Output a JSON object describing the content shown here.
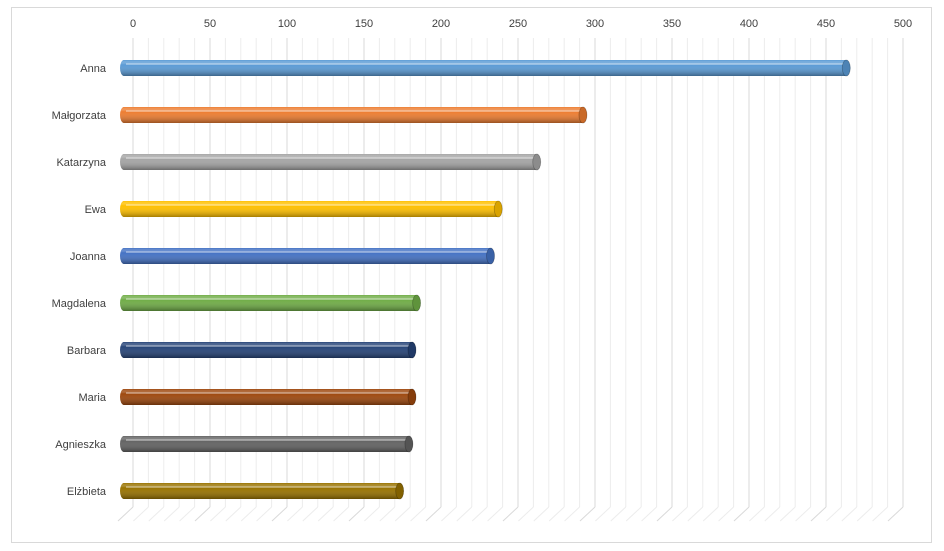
{
  "chart_data": {
    "type": "bar",
    "orientation": "horizontal",
    "style": "3d-cylinder",
    "title": "",
    "xlabel": "",
    "ylabel": "",
    "xlim": [
      0,
      500
    ],
    "xticks": [
      0,
      50,
      100,
      150,
      200,
      250,
      300,
      350,
      400,
      450,
      500
    ],
    "axis_position": "top",
    "grid": true,
    "legend": "none",
    "categories": [
      "Anna",
      "Małgorzata",
      "Katarzyna",
      "Ewa",
      "Joanna",
      "Magdalena",
      "Barbara",
      "Maria",
      "Agnieszka",
      "Elżbieta"
    ],
    "values": [
      469,
      298,
      268,
      243,
      238,
      190,
      187,
      187,
      185,
      179
    ],
    "colors": [
      "#5b9bd5",
      "#ed7d31",
      "#a5a5a5",
      "#ffc000",
      "#4472c4",
      "#70ad47",
      "#264478",
      "#9e480e",
      "#636363",
      "#997300"
    ]
  }
}
